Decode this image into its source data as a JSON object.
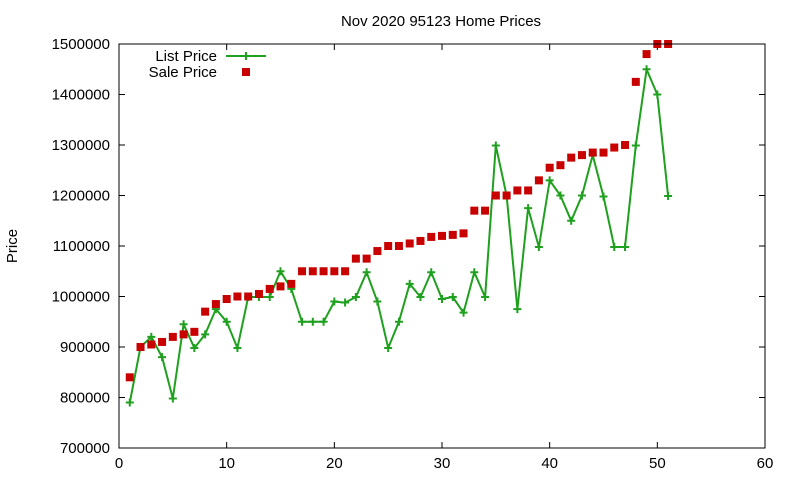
{
  "chart_data": {
    "type": "scatter",
    "title": "Nov 2020 95123 Home Prices",
    "xlabel": "",
    "ylabel": "Price",
    "xlim": [
      0,
      60
    ],
    "ylim": [
      700000,
      1500000
    ],
    "x_ticks": [
      0,
      10,
      20,
      30,
      40,
      50,
      60
    ],
    "y_ticks": [
      700000,
      800000,
      900000,
      1000000,
      1100000,
      1200000,
      1300000,
      1400000,
      1500000
    ],
    "grid": false,
    "legend_position": "top-left",
    "series": [
      {
        "name": "List Price",
        "style": "line+points",
        "color": "#1fa01f",
        "x": [
          1,
          2,
          3,
          4,
          5,
          6,
          7,
          8,
          9,
          10,
          11,
          12,
          13,
          14,
          15,
          16,
          17,
          18,
          19,
          20,
          21,
          22,
          23,
          24,
          25,
          26,
          27,
          28,
          29,
          30,
          31,
          32,
          33,
          34,
          35,
          36,
          37,
          38,
          39,
          40,
          41,
          42,
          43,
          44,
          45,
          46,
          47,
          48,
          49,
          50,
          51
        ],
        "y": [
          790000,
          900000,
          920000,
          880000,
          798000,
          945000,
          898000,
          925000,
          975000,
          950000,
          898000,
          999000,
          999000,
          999000,
          1050000,
          1015000,
          950000,
          950000,
          950000,
          990000,
          988000,
          999000,
          1048000,
          990000,
          898000,
          950000,
          1025000,
          999000,
          1048000,
          995000,
          999000,
          968000,
          1048000,
          999000,
          1299000,
          1200000,
          975000,
          1175000,
          1098000,
          1230000,
          1200000,
          1150000,
          1200000,
          1280000,
          1198000,
          1098000,
          1098000,
          1299000,
          1450000,
          1400000,
          1199000
        ]
      },
      {
        "name": "Sale Price",
        "style": "points",
        "color": "#c80000",
        "x": [
          1,
          2,
          3,
          4,
          5,
          6,
          7,
          8,
          9,
          10,
          11,
          12,
          13,
          14,
          15,
          16,
          17,
          18,
          19,
          20,
          21,
          22,
          23,
          24,
          25,
          26,
          27,
          28,
          29,
          30,
          31,
          32,
          33,
          34,
          35,
          36,
          37,
          38,
          39,
          40,
          41,
          42,
          43,
          44,
          45,
          46,
          47,
          48,
          49,
          50,
          51
        ],
        "y": [
          840000,
          900000,
          905000,
          910000,
          920000,
          925000,
          930000,
          970000,
          985000,
          995000,
          1000000,
          1000000,
          1005000,
          1015000,
          1020000,
          1025000,
          1050000,
          1050000,
          1050000,
          1050000,
          1050000,
          1075000,
          1075000,
          1090000,
          1100000,
          1100000,
          1105000,
          1110000,
          1118000,
          1120000,
          1122000,
          1125000,
          1170000,
          1170000,
          1200000,
          1200000,
          1210000,
          1210000,
          1230000,
          1255000,
          1260000,
          1275000,
          1280000,
          1285000,
          1285000,
          1295000,
          1300000,
          1425000,
          1480000,
          1500000,
          1500000
        ]
      }
    ]
  }
}
